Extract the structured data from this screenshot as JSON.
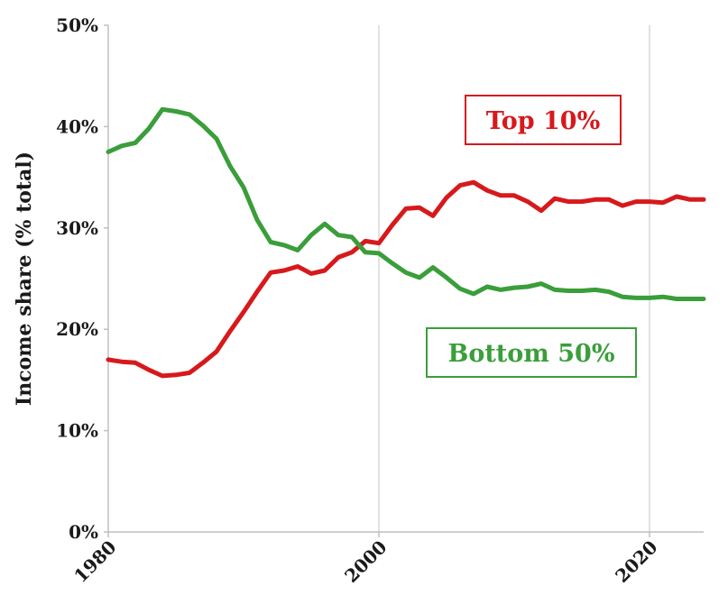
{
  "chart_data": {
    "type": "line",
    "ylabel": "Income share (% total)",
    "xlim": [
      1980,
      2024
    ],
    "ylim": [
      0,
      50
    ],
    "x_ticks": [
      {
        "value": 1980,
        "label": "1980"
      },
      {
        "value": 2000,
        "label": "2000"
      },
      {
        "value": 2020,
        "label": "2020"
      }
    ],
    "y_ticks": [
      {
        "value": 0,
        "label": "0%"
      },
      {
        "value": 10,
        "label": "10%"
      },
      {
        "value": 20,
        "label": "20%"
      },
      {
        "value": 30,
        "label": "30%"
      },
      {
        "value": 40,
        "label": "40%"
      },
      {
        "value": 50,
        "label": "50%"
      }
    ],
    "grid": {
      "vertical": true,
      "horizontal": false
    },
    "legend_placement": "inline labels",
    "series": [
      {
        "name": "Top 10%",
        "color": "#d7191c",
        "label_position": "top-right",
        "x": [
          1980,
          1981,
          1982,
          1983,
          1984,
          1985,
          1986,
          1987,
          1988,
          1989,
          1990,
          1991,
          1992,
          1993,
          1994,
          1995,
          1996,
          1997,
          1998,
          1999,
          2000,
          2001,
          2002,
          2003,
          2004,
          2005,
          2006,
          2007,
          2008,
          2009,
          2010,
          2011,
          2012,
          2013,
          2014,
          2015,
          2016,
          2017,
          2018,
          2019,
          2020,
          2021,
          2022,
          2023,
          2024
        ],
        "values": [
          17.0,
          16.8,
          16.7,
          16.0,
          15.4,
          15.5,
          15.7,
          16.7,
          17.8,
          19.8,
          21.7,
          23.7,
          25.6,
          25.8,
          26.2,
          25.5,
          25.8,
          27.1,
          27.6,
          28.7,
          28.5,
          30.3,
          31.9,
          32.0,
          31.2,
          33.0,
          34.2,
          34.5,
          33.7,
          33.2,
          33.2,
          32.6,
          31.7,
          32.9,
          32.6,
          32.6,
          32.8,
          32.8,
          32.2,
          32.6,
          32.6,
          32.5,
          33.1,
          32.8,
          32.8
        ]
      },
      {
        "name": "Bottom 50%",
        "color": "#3a9e3a",
        "label_position": "bottom-right",
        "x": [
          1980,
          1981,
          1982,
          1983,
          1984,
          1985,
          1986,
          1987,
          1988,
          1989,
          1990,
          1991,
          1992,
          1993,
          1994,
          1995,
          1996,
          1997,
          1998,
          1999,
          2000,
          2001,
          2002,
          2003,
          2004,
          2005,
          2006,
          2007,
          2008,
          2009,
          2010,
          2011,
          2012,
          2013,
          2014,
          2015,
          2016,
          2017,
          2018,
          2019,
          2020,
          2021,
          2022,
          2023,
          2024
        ],
        "values": [
          37.5,
          38.1,
          38.4,
          39.8,
          41.7,
          41.5,
          41.2,
          40.1,
          38.8,
          36.1,
          34.0,
          30.8,
          28.6,
          28.3,
          27.8,
          29.3,
          30.4,
          29.3,
          29.1,
          27.6,
          27.5,
          26.5,
          25.6,
          25.1,
          26.1,
          25.1,
          24.0,
          23.5,
          24.2,
          23.9,
          24.1,
          24.2,
          24.5,
          23.9,
          23.8,
          23.8,
          23.9,
          23.7,
          23.2,
          23.1,
          23.1,
          23.2,
          23.0,
          23.0,
          23.0
        ]
      }
    ]
  }
}
